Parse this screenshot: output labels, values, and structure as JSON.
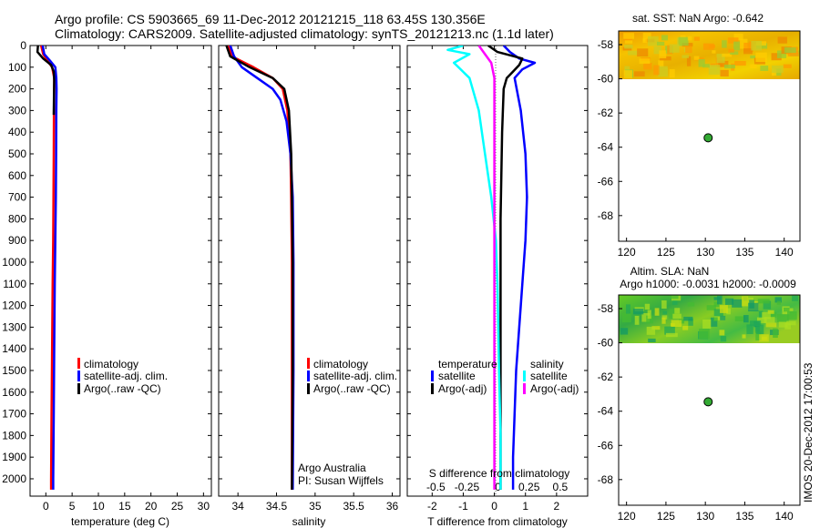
{
  "header": {
    "title_line1": "Argo profile: CS 5903665_69 11-Dec-2012 20121215_118 63.45S 130.356E",
    "title_line2": "Climatology: CARS2009. Satellite-adjusted climatology: synTS_20121213.nc (1.1d later)"
  },
  "colors": {
    "climatology": "#ff0000",
    "satellite": "#0000ff",
    "argo": "#000000",
    "satellite_salinity": "#00ffff",
    "argo_salinity_adj": "#ff00ff",
    "float_marker": "#33aa33"
  },
  "chart_data": [
    {
      "id": "temperature",
      "type": "line",
      "xlabel": "temperature (deg C)",
      "ylabel": "",
      "xlim": [
        -3,
        31.5
      ],
      "ylim": [
        2080,
        0
      ],
      "xticks": [
        0,
        5,
        10,
        15,
        20,
        25,
        30
      ],
      "yticks": [
        0,
        100,
        200,
        300,
        400,
        500,
        600,
        700,
        800,
        900,
        1000,
        1100,
        1200,
        1300,
        1400,
        1500,
        1600,
        1700,
        1800,
        1900,
        2000
      ],
      "legend": {
        "location": "center-right",
        "entries": [
          {
            "label": "climatology",
            "color": "#ff0000"
          },
          {
            "label": "satellite-adj. clim.",
            "color": "#0000ff"
          },
          {
            "label": "Argo(..raw -QC)",
            "color": "#000000"
          }
        ]
      },
      "series": [
        {
          "name": "climatology",
          "color": "#ff0000",
          "x": [
            -0.9,
            -0.5,
            0.3,
            1.2,
            1.6,
            1.6,
            1.55,
            1.5,
            1.45,
            1.4,
            1.3,
            1.2,
            1.1,
            1.0,
            1.0
          ],
          "depth": [
            0,
            40,
            70,
            100,
            150,
            200,
            300,
            500,
            700,
            900,
            1100,
            1400,
            1700,
            2000,
            2050
          ]
        },
        {
          "name": "satellite-adj. clim.",
          "color": "#0000ff",
          "x": [
            -0.6,
            -0.3,
            0.8,
            1.8,
            2.0,
            2.05,
            2.0,
            1.95,
            1.9,
            1.8,
            1.7,
            1.6,
            1.5,
            1.4,
            1.4
          ],
          "depth": [
            0,
            40,
            70,
            100,
            150,
            200,
            300,
            500,
            700,
            900,
            1100,
            1400,
            1700,
            2000,
            2050
          ]
        },
        {
          "name": "Argo(..raw -QC)",
          "color": "#000000",
          "x": [
            -1.5,
            -1.6,
            -0.5,
            1.0,
            1.5,
            1.6,
            1.55,
            1.5
          ],
          "depth": [
            0,
            30,
            60,
            90,
            120,
            160,
            250,
            320
          ]
        }
      ]
    },
    {
      "id": "salinity",
      "type": "line",
      "xlabel": "salinity",
      "xlim": [
        33.75,
        36.1
      ],
      "ylim": [
        2080,
        0
      ],
      "xticks": [
        34,
        34.5,
        35,
        35.5,
        36
      ],
      "legend": {
        "location": "center-right",
        "entries": [
          {
            "label": "climatology",
            "color": "#ff0000"
          },
          {
            "label": "satellite-adj. clim.",
            "color": "#0000ff"
          },
          {
            "label": "Argo(..raw -QC)",
            "color": "#000000"
          }
        ]
      },
      "annotations": [
        "Argo Australia",
        "PI: Susan Wijffels"
      ],
      "series": [
        {
          "name": "climatology",
          "color": "#ff0000",
          "x": [
            33.88,
            33.92,
            34.2,
            34.45,
            34.58,
            34.64,
            34.68,
            34.69,
            34.7,
            34.7,
            34.7
          ],
          "depth": [
            0,
            50,
            100,
            150,
            200,
            300,
            500,
            700,
            1000,
            1500,
            2050
          ]
        },
        {
          "name": "satellite-adj. clim.",
          "color": "#0000ff",
          "x": [
            33.9,
            33.95,
            34.05,
            34.25,
            34.45,
            34.55,
            34.63,
            34.68,
            34.71,
            34.72,
            34.72,
            34.71
          ],
          "depth": [
            0,
            50,
            100,
            150,
            200,
            250,
            350,
            500,
            700,
            1000,
            1500,
            2050
          ]
        },
        {
          "name": "Argo(..raw -QC)",
          "color": "#000000",
          "x": [
            33.85,
            33.9,
            34.15,
            34.45,
            34.6,
            34.66,
            34.69,
            34.7,
            34.71,
            34.71,
            34.7
          ],
          "depth": [
            0,
            50,
            100,
            150,
            200,
            300,
            500,
            700,
            1000,
            1500,
            2050
          ]
        }
      ]
    },
    {
      "id": "differences",
      "type": "line",
      "xlabel": "T difference from climatology",
      "xlabel_top": "S difference from climatology",
      "xlim": [
        -2.8,
        3.0
      ],
      "ylim": [
        2080,
        0
      ],
      "xticks_T": [
        -2,
        -1,
        0,
        1,
        2
      ],
      "xticks_S": [
        -0.5,
        -0.25,
        0,
        0.25,
        0.5
      ],
      "legend": {
        "location": "center",
        "temperature_heading": "temperature",
        "salinity_heading": "salinity",
        "entries": [
          {
            "group": "temperature",
            "label": "satellite",
            "color": "#0000ff"
          },
          {
            "group": "temperature",
            "label": "Argo(-adj)",
            "color": "#000000"
          },
          {
            "group": "salinity",
            "label": "satellite",
            "color": "#00ffff"
          },
          {
            "group": "salinity",
            "label": "Argo(-adj)",
            "color": "#ff00ff"
          }
        ]
      },
      "series": [
        {
          "name": "T satellite",
          "color": "#0000ff",
          "x": [
            0.3,
            0.5,
            0.8,
            1.3,
            0.9,
            0.65,
            0.85,
            1.0,
            1.05,
            1.0,
            0.9,
            0.8,
            0.7,
            0.65,
            0.6,
            0.6
          ],
          "depth": [
            0,
            30,
            60,
            80,
            110,
            150,
            300,
            500,
            700,
            900,
            1100,
            1300,
            1500,
            1700,
            1900,
            2050
          ]
        },
        {
          "name": "T Argo(-adj)",
          "color": "#000000",
          "x": [
            -0.2,
            0.1,
            0.9,
            0.8,
            0.6,
            0.4,
            0.3,
            0.25,
            0.2,
            0.2,
            0.2
          ],
          "depth": [
            0,
            30,
            60,
            90,
            120,
            150,
            200,
            400,
            800,
            1500,
            2050
          ]
        },
        {
          "name": "S satellite",
          "color": "#00ffff",
          "x": [
            -1.0,
            -1.5,
            -0.8,
            -1.3,
            -0.8,
            -0.5,
            -0.3,
            -0.1,
            0.05,
            0.1,
            0.15,
            0.2,
            0.2
          ],
          "depth": [
            0,
            20,
            40,
            80,
            150,
            300,
            500,
            700,
            900,
            1100,
            1500,
            1800,
            2050
          ]
        },
        {
          "name": "S Argo(-adj)",
          "color": "#ff00ff",
          "x": [
            -0.5,
            -0.3,
            -0.1,
            0.0,
            0.0,
            0.0,
            0.0
          ],
          "depth": [
            0,
            40,
            80,
            150,
            500,
            1000,
            2050
          ]
        }
      ]
    },
    {
      "id": "sst_map",
      "type": "heatmap",
      "title": "sat. SST: NaN Argo: -0.642",
      "xlim": [
        119,
        142
      ],
      "ylim": [
        -69.5,
        -57.2
      ],
      "xticks": [
        120,
        125,
        130,
        135,
        140
      ],
      "yticks": [
        -58,
        -60,
        -62,
        -64,
        -66,
        -68
      ],
      "field_lat_range": [
        -60,
        -57.2
      ],
      "float_position": {
        "lon": 130.356,
        "lat": -63.45
      }
    },
    {
      "id": "sla_map",
      "type": "heatmap",
      "title_line1": "Altim. SLA: NaN",
      "title_line2": "Argo h1000: -0.0031 h2000: -0.0009",
      "xlim": [
        119,
        142
      ],
      "ylim": [
        -69.5,
        -57.2
      ],
      "xticks": [
        120,
        125,
        130,
        135,
        140
      ],
      "yticks": [
        -58,
        -60,
        -62,
        -64,
        -66,
        -68
      ],
      "field_lat_range": [
        -60,
        -57.2
      ],
      "float_position": {
        "lon": 130.356,
        "lat": -63.45
      }
    }
  ],
  "footer": {
    "stamp": "IMOS 20-Dec-2012 17:00:53"
  }
}
